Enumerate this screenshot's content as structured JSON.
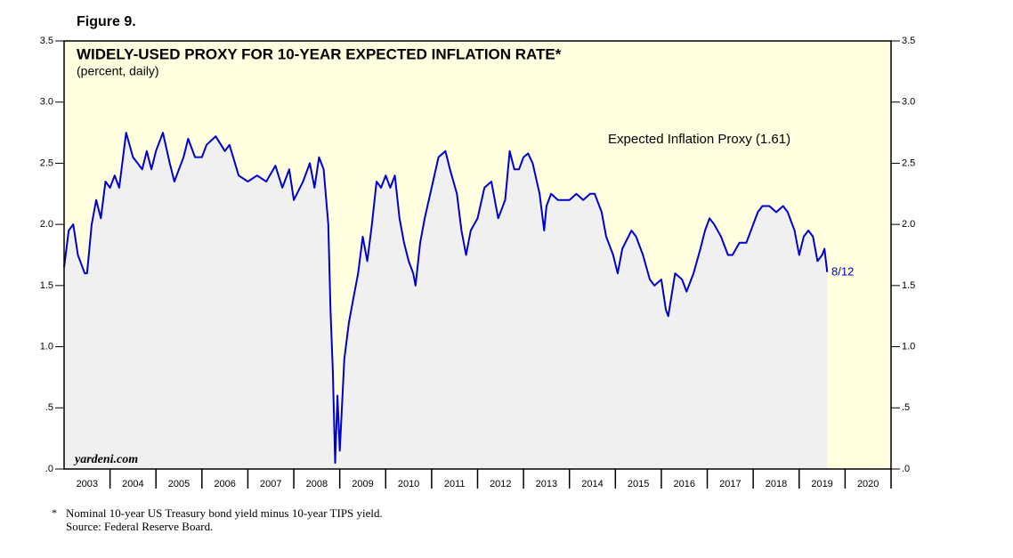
{
  "figure_label": "Figure 9.",
  "chart_data": {
    "type": "line",
    "title": "WIDELY-USED PROXY FOR 10-YEAR EXPECTED INFLATION RATE*",
    "subtitle": "(percent, daily)",
    "annotation": "Expected Inflation Proxy (1.61)",
    "end_label": "8/12",
    "watermark": "yardeni.com",
    "color": "#0000cc",
    "x": [
      2003.0,
      2003.1,
      2003.2,
      2003.3,
      2003.45,
      2003.5,
      2003.6,
      2003.7,
      2003.8,
      2003.9,
      2004.0,
      2004.1,
      2004.2,
      2004.35,
      2004.5,
      2004.6,
      2004.7,
      2004.8,
      2004.9,
      2005.0,
      2005.15,
      2005.3,
      2005.4,
      2005.5,
      2005.6,
      2005.7,
      2005.85,
      2006.0,
      2006.1,
      2006.3,
      2006.5,
      2006.6,
      2006.8,
      2007.0,
      2007.2,
      2007.4,
      2007.6,
      2007.75,
      2007.9,
      2008.0,
      2008.2,
      2008.35,
      2008.45,
      2008.55,
      2008.65,
      2008.75,
      2008.8,
      2008.85,
      2008.9,
      2008.95,
      2009.0,
      2009.1,
      2009.2,
      2009.3,
      2009.4,
      2009.5,
      2009.6,
      2009.7,
      2009.8,
      2009.9,
      2010.0,
      2010.1,
      2010.2,
      2010.3,
      2010.4,
      2010.5,
      2010.6,
      2010.65,
      2010.75,
      2010.85,
      2011.0,
      2011.15,
      2011.3,
      2011.4,
      2011.55,
      2011.65,
      2011.75,
      2011.85,
      2012.0,
      2012.15,
      2012.3,
      2012.45,
      2012.6,
      2012.7,
      2012.8,
      2012.9,
      2013.0,
      2013.1,
      2013.2,
      2013.35,
      2013.45,
      2013.5,
      2013.6,
      2013.75,
      2013.9,
      2014.0,
      2014.15,
      2014.3,
      2014.45,
      2014.55,
      2014.7,
      2014.8,
      2014.95,
      2015.05,
      2015.15,
      2015.35,
      2015.45,
      2015.6,
      2015.75,
      2015.85,
      2016.0,
      2016.1,
      2016.15,
      2016.3,
      2016.45,
      2016.55,
      2016.7,
      2016.85,
      2016.95,
      2017.05,
      2017.15,
      2017.3,
      2017.45,
      2017.55,
      2017.7,
      2017.85,
      2017.95,
      2018.1,
      2018.2,
      2018.35,
      2018.5,
      2018.65,
      2018.75,
      2018.9,
      2019.0,
      2019.1,
      2019.2,
      2019.3,
      2019.4,
      2019.5,
      2019.55,
      2019.61
    ],
    "values": [
      1.65,
      1.95,
      2.0,
      1.75,
      1.6,
      1.6,
      2.0,
      2.2,
      2.05,
      2.35,
      2.3,
      2.4,
      2.3,
      2.75,
      2.55,
      2.5,
      2.45,
      2.6,
      2.45,
      2.6,
      2.75,
      2.5,
      2.35,
      2.45,
      2.55,
      2.7,
      2.55,
      2.55,
      2.65,
      2.72,
      2.6,
      2.65,
      2.4,
      2.35,
      2.4,
      2.35,
      2.48,
      2.3,
      2.45,
      2.2,
      2.35,
      2.5,
      2.3,
      2.55,
      2.45,
      2.0,
      1.3,
      0.8,
      0.05,
      0.6,
      0.15,
      0.9,
      1.2,
      1.4,
      1.6,
      1.9,
      1.7,
      2.0,
      2.35,
      2.3,
      2.4,
      2.3,
      2.4,
      2.05,
      1.85,
      1.7,
      1.6,
      1.5,
      1.85,
      2.05,
      2.3,
      2.55,
      2.6,
      2.45,
      2.25,
      1.95,
      1.75,
      1.95,
      2.05,
      2.3,
      2.35,
      2.05,
      2.2,
      2.6,
      2.45,
      2.45,
      2.55,
      2.58,
      2.5,
      2.25,
      1.95,
      2.15,
      2.25,
      2.2,
      2.2,
      2.2,
      2.25,
      2.2,
      2.25,
      2.25,
      2.1,
      1.9,
      1.75,
      1.6,
      1.8,
      1.95,
      1.9,
      1.75,
      1.55,
      1.5,
      1.55,
      1.3,
      1.25,
      1.6,
      1.55,
      1.45,
      1.6,
      1.8,
      1.95,
      2.05,
      2.0,
      1.9,
      1.75,
      1.75,
      1.85,
      1.85,
      1.95,
      2.1,
      2.15,
      2.15,
      2.1,
      2.15,
      2.1,
      1.95,
      1.75,
      1.9,
      1.95,
      1.9,
      1.7,
      1.75,
      1.8,
      1.61
    ],
    "xlim": [
      2003,
      2021
    ],
    "xticks": [
      {
        "value": 2003.5,
        "label": "2003"
      },
      {
        "value": 2004.5,
        "label": "2004"
      },
      {
        "value": 2005.5,
        "label": "2005"
      },
      {
        "value": 2006.5,
        "label": "2006"
      },
      {
        "value": 2007.5,
        "label": "2007"
      },
      {
        "value": 2008.5,
        "label": "2008"
      },
      {
        "value": 2009.5,
        "label": "2009"
      },
      {
        "value": 2010.5,
        "label": "2010"
      },
      {
        "value": 2011.5,
        "label": "2011"
      },
      {
        "value": 2012.5,
        "label": "2012"
      },
      {
        "value": 2013.5,
        "label": "2013"
      },
      {
        "value": 2014.5,
        "label": "2014"
      },
      {
        "value": 2015.5,
        "label": "2015"
      },
      {
        "value": 2016.5,
        "label": "2016"
      },
      {
        "value": 2017.5,
        "label": "2017"
      },
      {
        "value": 2018.5,
        "label": "2018"
      },
      {
        "value": 2019.5,
        "label": "2019"
      },
      {
        "value": 2020.5,
        "label": "2020"
      }
    ],
    "ylim": [
      0,
      3.5
    ],
    "yticks": [
      {
        "value": 0,
        "label": ".0"
      },
      {
        "value": 0.5,
        "label": ".5"
      },
      {
        "value": 1,
        "label": "1.0"
      },
      1.5,
      {
        "value": 2,
        "label": "2.0"
      },
      2.5,
      {
        "value": 3,
        "label": "3.0"
      },
      3.5
    ],
    "footnote": [
      "*",
      "Nominal 10-year US Treasury bond yield minus 10-year TIPS yield.",
      "Source: Federal Reserve Board."
    ]
  }
}
